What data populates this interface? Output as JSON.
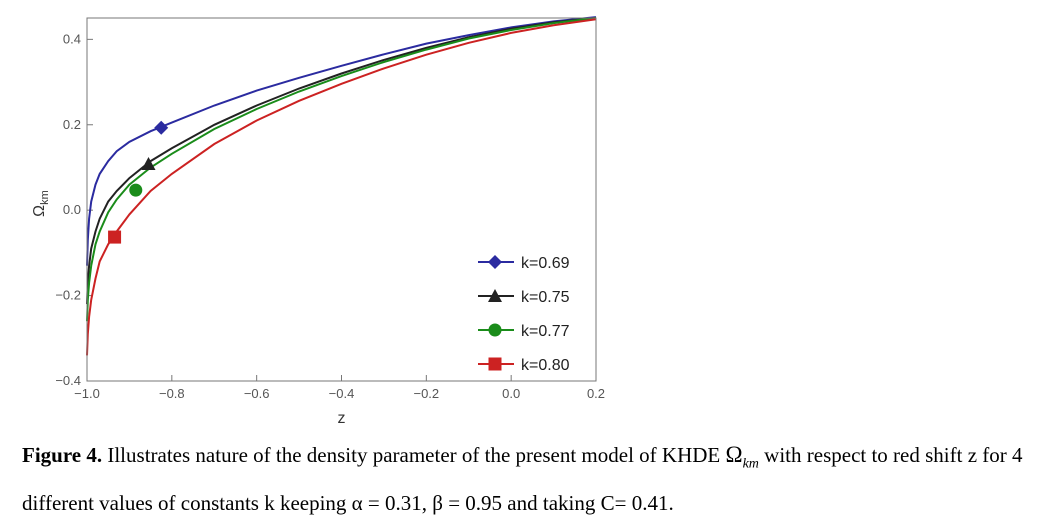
{
  "chart_data": {
    "type": "line",
    "title": "",
    "xlabel": "z",
    "ylabel": "Ω",
    "ylabel_sub": "km",
    "xlim": [
      -1.0,
      0.2
    ],
    "ylim": [
      -0.4,
      0.45
    ],
    "xticks": [
      "−1.0",
      "−0.8",
      "−0.6",
      "−0.4",
      "−0.2",
      "0.0",
      "0.2"
    ],
    "xtick_values": [
      -1.0,
      -0.8,
      -0.6,
      -0.4,
      -0.2,
      0.0,
      0.2
    ],
    "yticks": [
      "−0.4",
      "−0.2",
      "0.0",
      "0.2",
      "0.4"
    ],
    "ytick_values": [
      -0.4,
      -0.2,
      0.0,
      0.2,
      0.4
    ],
    "grid": false,
    "legend_position": "bottom-right",
    "series": [
      {
        "name": "k=0.69",
        "color": "#2b2ba0",
        "marker": "diamond",
        "marker_point": [
          -0.825,
          0.193
        ],
        "x": [
          -1.0,
          -0.998,
          -0.995,
          -0.99,
          -0.98,
          -0.97,
          -0.95,
          -0.93,
          -0.9,
          -0.85,
          -0.8,
          -0.7,
          -0.6,
          -0.5,
          -0.4,
          -0.3,
          -0.2,
          -0.1,
          0.0,
          0.1,
          0.2
        ],
        "y": [
          -0.13,
          -0.07,
          -0.02,
          0.02,
          0.06,
          0.085,
          0.115,
          0.138,
          0.16,
          0.185,
          0.205,
          0.245,
          0.28,
          0.31,
          0.338,
          0.365,
          0.39,
          0.41,
          0.428,
          0.442,
          0.452
        ]
      },
      {
        "name": "k=0.75",
        "color": "#222222",
        "marker": "triangle",
        "marker_point": [
          -0.855,
          0.108
        ],
        "x": [
          -1.0,
          -0.998,
          -0.995,
          -0.99,
          -0.98,
          -0.97,
          -0.95,
          -0.93,
          -0.9,
          -0.85,
          -0.8,
          -0.7,
          -0.6,
          -0.5,
          -0.4,
          -0.3,
          -0.2,
          -0.1,
          0.0,
          0.1,
          0.2
        ],
        "y": [
          -0.22,
          -0.17,
          -0.13,
          -0.09,
          -0.05,
          -0.02,
          0.02,
          0.045,
          0.075,
          0.115,
          0.145,
          0.2,
          0.245,
          0.285,
          0.32,
          0.352,
          0.38,
          0.405,
          0.425,
          0.44,
          0.45
        ]
      },
      {
        "name": "k=0.77",
        "color": "#1a8c1a",
        "marker": "circle",
        "marker_point": [
          -0.885,
          0.047
        ],
        "x": [
          -1.0,
          -0.998,
          -0.995,
          -0.99,
          -0.98,
          -0.97,
          -0.95,
          -0.93,
          -0.9,
          -0.85,
          -0.8,
          -0.7,
          -0.6,
          -0.5,
          -0.4,
          -0.3,
          -0.2,
          -0.1,
          0.0,
          0.1,
          0.2
        ],
        "y": [
          -0.26,
          -0.21,
          -0.17,
          -0.13,
          -0.08,
          -0.05,
          -0.005,
          0.025,
          0.06,
          0.1,
          0.132,
          0.19,
          0.237,
          0.278,
          0.314,
          0.347,
          0.376,
          0.402,
          0.422,
          0.438,
          0.45
        ]
      },
      {
        "name": "k=0.80",
        "color": "#cc2222",
        "marker": "square",
        "marker_point": [
          -0.935,
          -0.063
        ],
        "x": [
          -1.0,
          -0.998,
          -0.995,
          -0.99,
          -0.98,
          -0.97,
          -0.95,
          -0.93,
          -0.9,
          -0.85,
          -0.8,
          -0.7,
          -0.6,
          -0.5,
          -0.4,
          -0.3,
          -0.2,
          -0.1,
          0.0,
          0.1,
          0.2
        ],
        "y": [
          -0.34,
          -0.29,
          -0.25,
          -0.21,
          -0.16,
          -0.12,
          -0.08,
          -0.05,
          -0.01,
          0.045,
          0.085,
          0.155,
          0.21,
          0.256,
          0.296,
          0.332,
          0.364,
          0.392,
          0.415,
          0.433,
          0.447
        ]
      }
    ]
  },
  "caption": {
    "label": "Figure 4.",
    "text_before_symbol": " Illustrates nature of the density parameter of  the present model of KHDE ",
    "symbol": "Ω",
    "symbol_sub": "km",
    "text_after_symbol": " with respect to red shift z for 4 different values of constants k keeping α = 0.31, β = 0.95 and taking C= 0.41."
  }
}
